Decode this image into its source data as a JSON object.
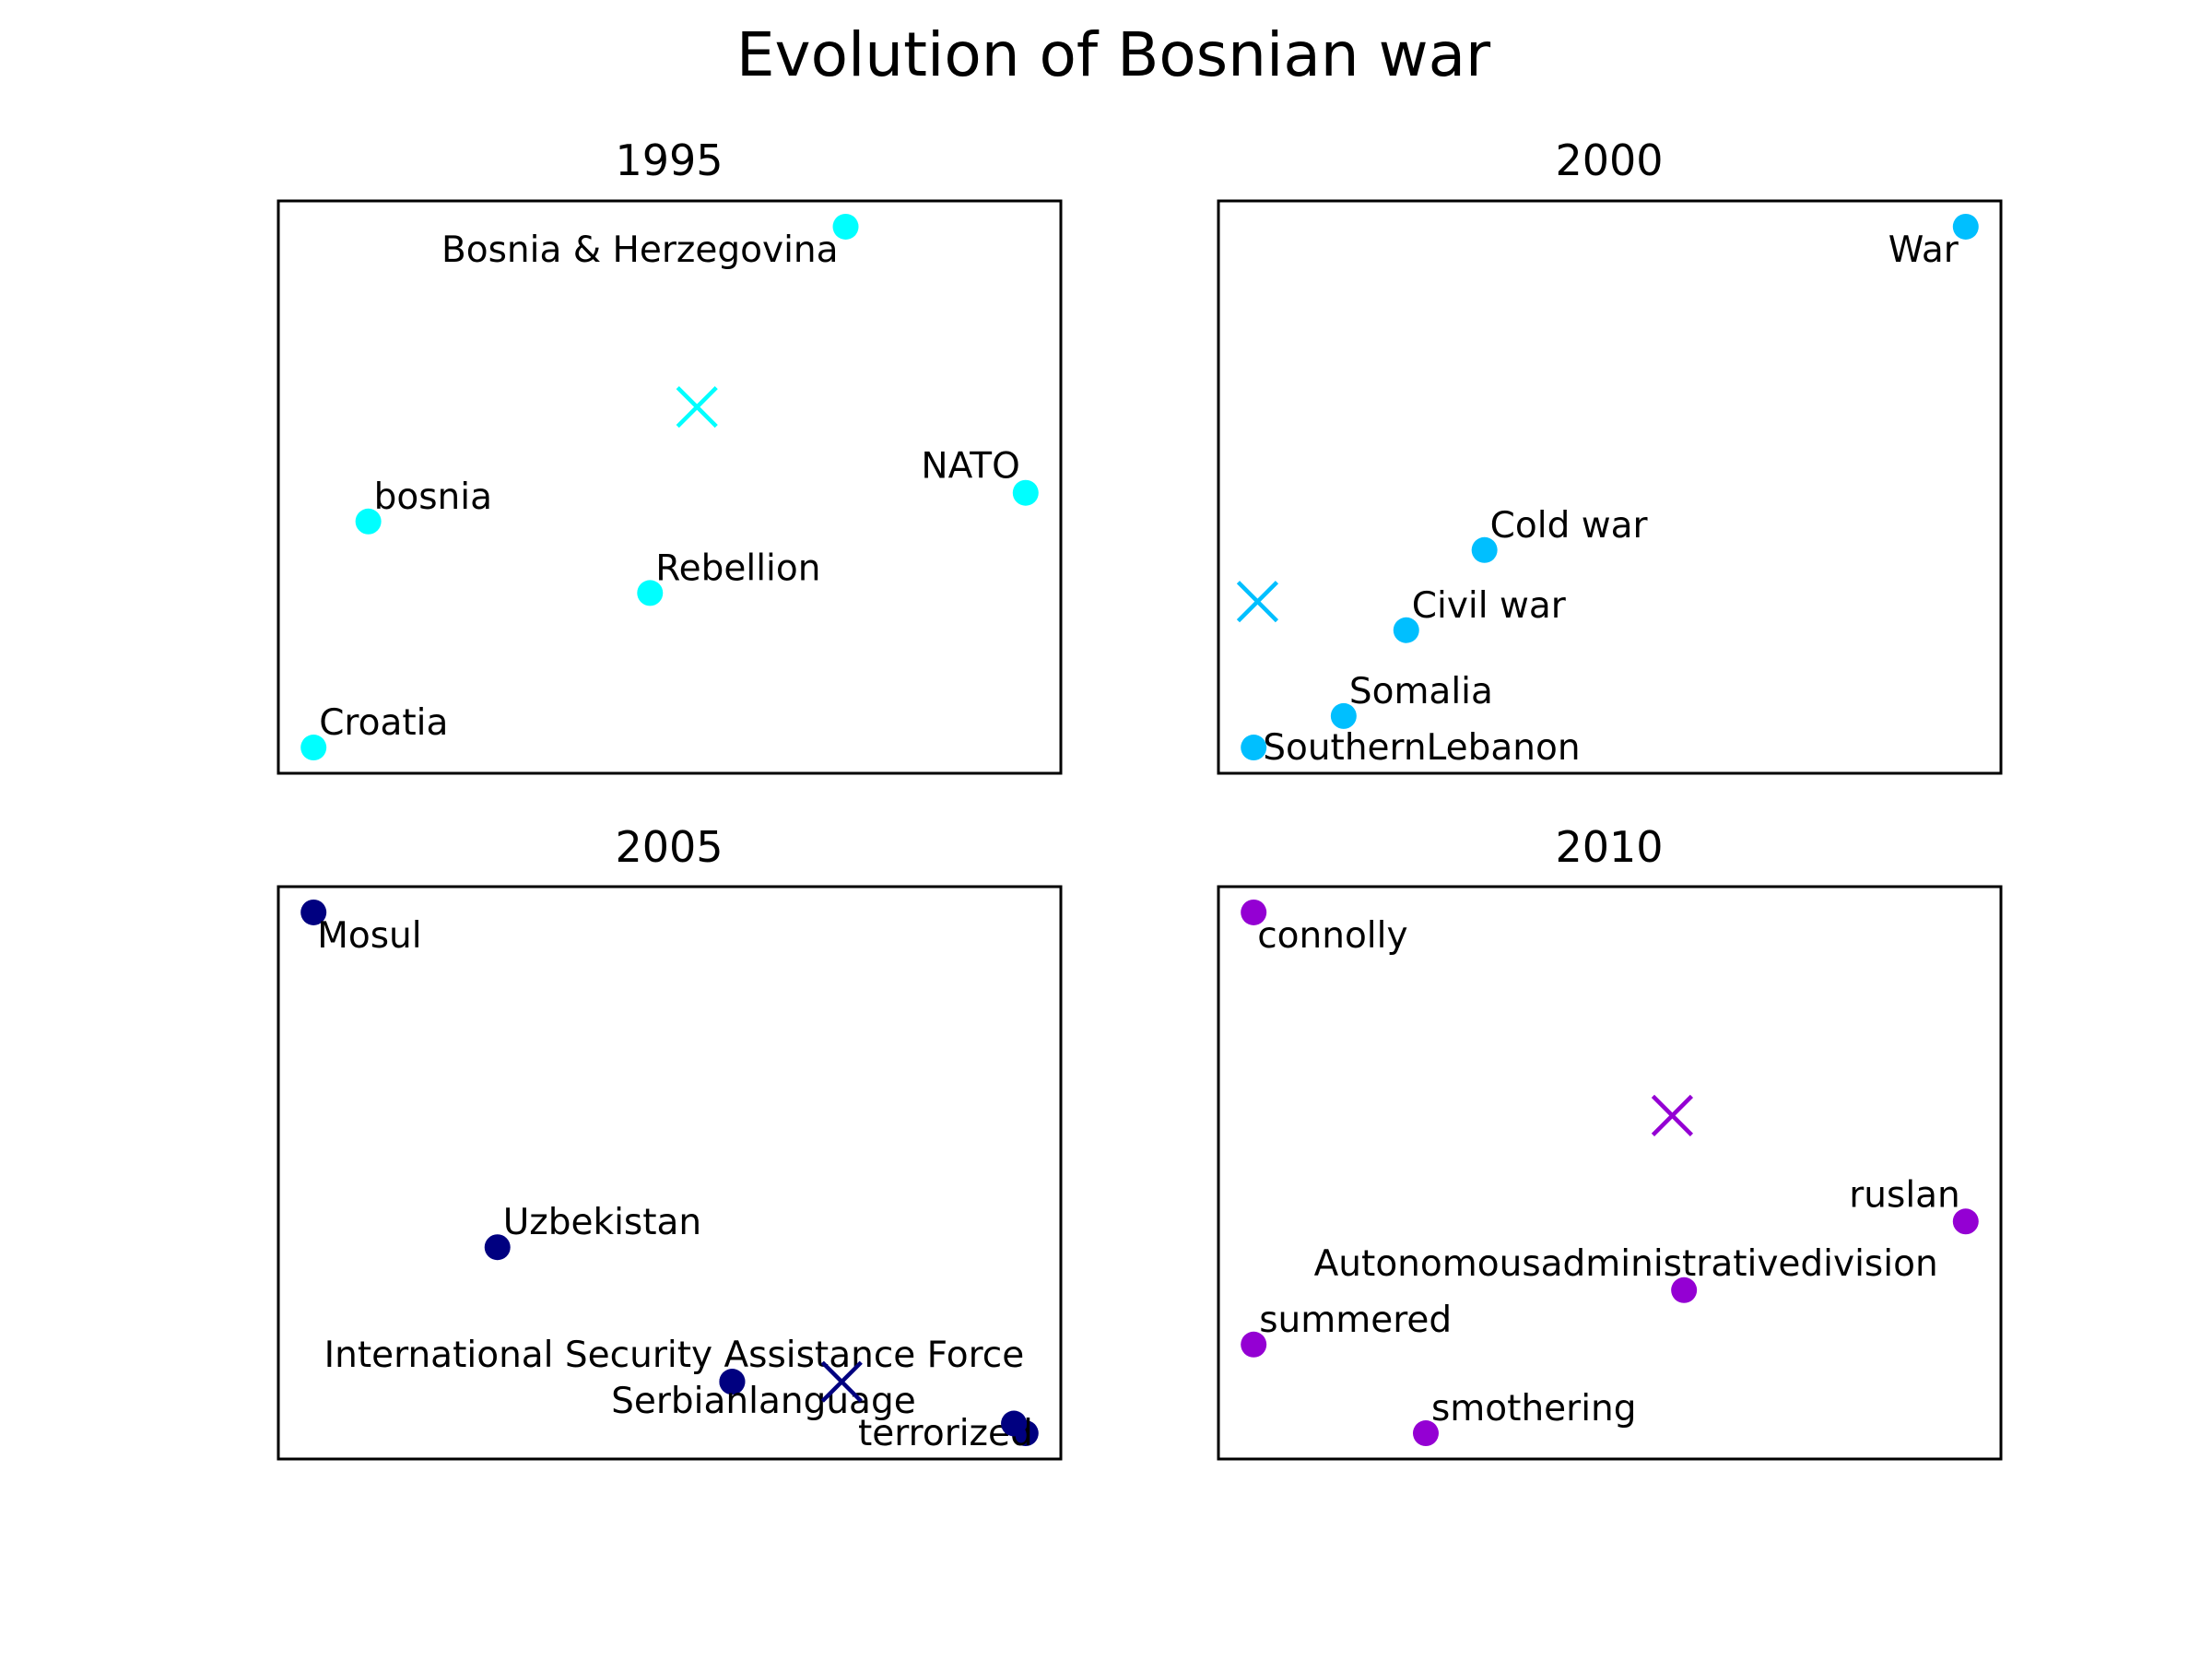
{
  "figure_title": "Evolution of Bosnian war",
  "chart_data": [
    {
      "type": "scatter",
      "title": "1995",
      "color": "#00FFFF",
      "xlim": [
        0,
        10
      ],
      "ylim": [
        0,
        10
      ],
      "grid": false,
      "axes_ticks": false,
      "points": [
        {
          "label": "Bosnia & Herzegovina",
          "x": 7.25,
          "y": 9.55,
          "label_pos": "below-left"
        },
        {
          "label": "NATO",
          "x": 9.55,
          "y": 4.9,
          "label_pos": "above-left"
        },
        {
          "label": "bosnia",
          "x": 1.15,
          "y": 4.4,
          "label_pos": "above-right"
        },
        {
          "label": "Rebellion",
          "x": 4.75,
          "y": 3.15,
          "label_pos": "above-right"
        },
        {
          "label": "Croatia",
          "x": 0.45,
          "y": 0.45,
          "label_pos": "above-right"
        }
      ],
      "centroid": {
        "x": 5.35,
        "y": 6.4
      }
    },
    {
      "type": "scatter",
      "title": "2000",
      "color": "#00BFFF",
      "xlim": [
        0,
        10
      ],
      "ylim": [
        0,
        10
      ],
      "grid": false,
      "axes_ticks": false,
      "points": [
        {
          "label": "War",
          "x": 9.55,
          "y": 9.55,
          "label_pos": "below-left"
        },
        {
          "label": "Cold war",
          "x": 3.4,
          "y": 3.9,
          "label_pos": "above-right"
        },
        {
          "label": "Civil war",
          "x": 2.4,
          "y": 2.5,
          "label_pos": "above-right"
        },
        {
          "label": "Somalia",
          "x": 1.6,
          "y": 1.0,
          "label_pos": "above-right"
        },
        {
          "label": "SouthernLebanon",
          "x": 0.45,
          "y": 0.45,
          "label_pos": "right"
        }
      ],
      "centroid": {
        "x": 0.5,
        "y": 3.0
      }
    },
    {
      "type": "scatter",
      "title": "2005",
      "color": "#000080",
      "xlim": [
        0,
        10
      ],
      "ylim": [
        0,
        10
      ],
      "grid": false,
      "axes_ticks": false,
      "points": [
        {
          "label": "Mosul",
          "x": 0.45,
          "y": 9.55,
          "label_pos": "below-right"
        },
        {
          "label": "Uzbekistan",
          "x": 2.8,
          "y": 3.7,
          "label_pos": "above-right"
        },
        {
          "label": "International Security Assistance Force",
          "x": 5.8,
          "y": 1.35,
          "label_pos": "above-center"
        },
        {
          "label": "Serbianlanguage",
          "x": 5.8,
          "y": 1.35,
          "label_pos": "below-center"
        },
        {
          "label": "terrorized",
          "x": 9.55,
          "y": 0.45,
          "label_pos": "left"
        },
        {
          "label": "",
          "x": 9.4,
          "y": 0.62,
          "label_pos": "none"
        }
      ],
      "centroid": {
        "x": 7.2,
        "y": 1.35
      }
    },
    {
      "type": "scatter",
      "title": "2010",
      "color": "#9400D3",
      "xlim": [
        0,
        10
      ],
      "ylim": [
        0,
        10
      ],
      "grid": false,
      "axes_ticks": false,
      "points": [
        {
          "label": "connolly",
          "x": 0.45,
          "y": 9.55,
          "label_pos": "below-right"
        },
        {
          "label": "ruslan",
          "x": 9.55,
          "y": 4.15,
          "label_pos": "above-left"
        },
        {
          "label": "Autonomousadministrativedivision",
          "x": 5.95,
          "y": 2.95,
          "label_pos": "above-center"
        },
        {
          "label": "summered",
          "x": 0.45,
          "y": 2.0,
          "label_pos": "above-right"
        },
        {
          "label": "smothering",
          "x": 2.65,
          "y": 0.45,
          "label_pos": "above-right"
        }
      ],
      "centroid": {
        "x": 5.8,
        "y": 6.0
      }
    }
  ]
}
